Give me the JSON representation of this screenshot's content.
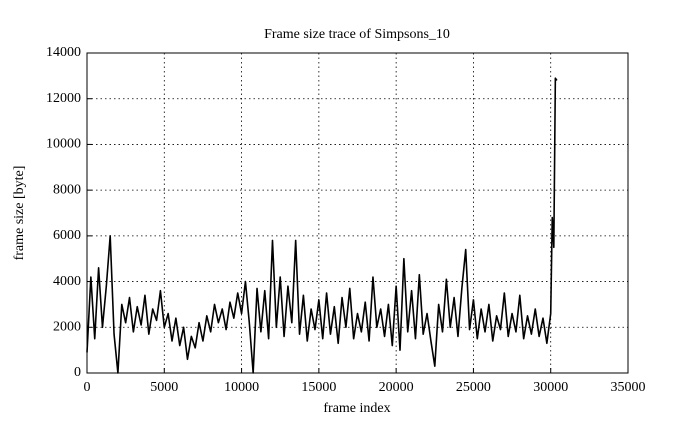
{
  "chart_data": {
    "type": "line",
    "title": "Frame size trace of Simpsons_10",
    "x_label": "frame index",
    "y_label": "frame size [byte]",
    "x": [
      0,
      250,
      500,
      750,
      1000,
      1250,
      1500,
      1750,
      2000,
      2250,
      2500,
      2750,
      3000,
      3250,
      3500,
      3750,
      4000,
      4250,
      4500,
      4750,
      5000,
      5250,
      5500,
      5750,
      6000,
      6250,
      6500,
      6750,
      7000,
      7250,
      7500,
      7750,
      8000,
      8250,
      8500,
      8750,
      9000,
      9250,
      9500,
      9750,
      10000,
      10250,
      10500,
      10750,
      11000,
      11250,
      11500,
      11750,
      12000,
      12250,
      12500,
      12750,
      13000,
      13250,
      13500,
      13750,
      14000,
      14250,
      14500,
      14750,
      15000,
      15250,
      15500,
      15750,
      16000,
      16250,
      16500,
      16750,
      17000,
      17250,
      17500,
      17750,
      18000,
      18250,
      18500,
      18750,
      19000,
      19250,
      19500,
      19750,
      20000,
      20250,
      20500,
      20750,
      21000,
      21250,
      21500,
      21750,
      22000,
      22250,
      22500,
      22750,
      23000,
      23250,
      23500,
      23750,
      24000,
      24250,
      24500,
      24750,
      25000,
      25250,
      25500,
      25750,
      26000,
      26250,
      26500,
      26750,
      27000,
      27250,
      27500,
      27750,
      28000,
      28250,
      28500,
      28750,
      29000,
      29250,
      29500,
      29750,
      30000,
      30100,
      30200,
      30300,
      30400
    ],
    "values": [
      900,
      4200,
      1500,
      4600,
      2000,
      3800,
      6000,
      1700,
      0,
      3000,
      2200,
      3300,
      1800,
      2900,
      2100,
      3400,
      1700,
      2800,
      2300,
      3600,
      2000,
      2600,
      1400,
      2400,
      1200,
      2000,
      600,
      1600,
      1100,
      2200,
      1400,
      2500,
      1800,
      3000,
      2200,
      2800,
      1900,
      3100,
      2400,
      3500,
      2600,
      4000,
      2200,
      0,
      3700,
      1800,
      3600,
      1500,
      5800,
      2000,
      4200,
      1600,
      3800,
      2200,
      5800,
      1700,
      3400,
      1400,
      2800,
      1900,
      3200,
      1500,
      3500,
      1700,
      2900,
      1300,
      3300,
      2000,
      3700,
      1500,
      2600,
      1800,
      3100,
      1400,
      4200,
      2000,
      2800,
      1600,
      3000,
      1200,
      3800,
      1000,
      5000,
      1800,
      3600,
      1500,
      4300,
      1700,
      2600,
      1400,
      300,
      3000,
      1800,
      4100,
      2000,
      3300,
      1600,
      3700,
      5400,
      1900,
      3200,
      1500,
      2800,
      1800,
      3000,
      1400,
      2500,
      1900,
      3500,
      1600,
      2600,
      1800,
      3400,
      1500,
      2500,
      1700,
      2800,
      1600,
      2400,
      1300,
      2600,
      6800,
      5500,
      12900,
      12800
    ],
    "color": "#000000",
    "xlim": [
      0,
      35000
    ],
    "xticks": [
      0,
      5000,
      10000,
      15000,
      20000,
      25000,
      30000,
      35000
    ],
    "ylim": [
      0,
      14000
    ],
    "yticks": [
      0,
      2000,
      4000,
      6000,
      8000,
      10000,
      12000,
      14000
    ],
    "grid": true
  }
}
